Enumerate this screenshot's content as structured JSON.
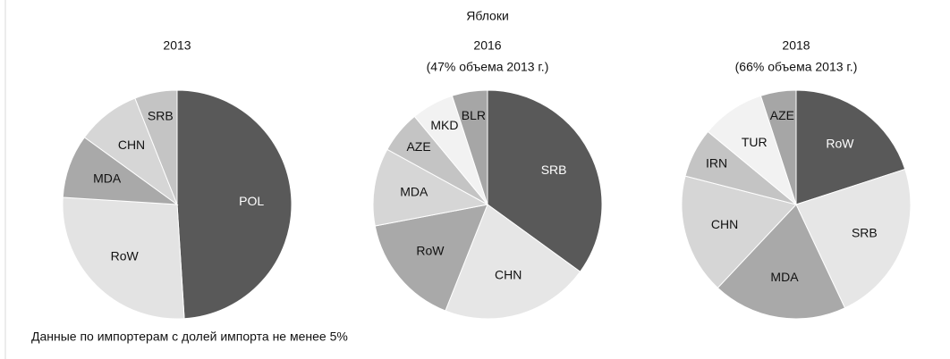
{
  "title": "Яблоки",
  "note": "Данные по импортерам с долей импорта не менее 5%",
  "chart_data": [
    {
      "type": "pie",
      "title": "2013",
      "categories": [
        "POL",
        "RoW",
        "MDA",
        "CHN",
        "SRB"
      ],
      "values": [
        49,
        27,
        9,
        9,
        6
      ],
      "colors": [
        "#595959",
        "#e3e3e3",
        "#a9a9a9",
        "#d6d6d6",
        "#c4c4c4"
      ],
      "label_colors": [
        "#ffffff",
        "#111111",
        "#111111",
        "#111111",
        "#111111"
      ]
    },
    {
      "type": "pie",
      "title": "2016",
      "subtitle": "(47% объема 2013 г.)",
      "categories": [
        "SRB",
        "CHN",
        "RoW",
        "MDA",
        "AZE",
        "MKD",
        "BLR"
      ],
      "values": [
        35,
        21,
        16,
        11,
        6,
        6,
        5
      ],
      "colors": [
        "#595959",
        "#e6e6e6",
        "#a9a9a9",
        "#d6d6d6",
        "#c4c4c4",
        "#f2f2f2",
        "#a6a6a6"
      ],
      "label_colors": [
        "#ffffff",
        "#111111",
        "#111111",
        "#111111",
        "#111111",
        "#111111",
        "#111111"
      ]
    },
    {
      "type": "pie",
      "title": "2018",
      "subtitle": "(66% объема 2013 г.)",
      "categories": [
        "RoW",
        "SRB",
        "MDA",
        "CHN",
        "IRN",
        "TUR",
        "AZE"
      ],
      "values": [
        20,
        23,
        19,
        17,
        7,
        9,
        5
      ],
      "colors": [
        "#595959",
        "#e6e6e6",
        "#a9a9a9",
        "#d6d6d6",
        "#c4c4c4",
        "#f2f2f2",
        "#a6a6a6"
      ],
      "label_colors": [
        "#ffffff",
        "#111111",
        "#111111",
        "#111111",
        "#111111",
        "#111111",
        "#111111"
      ]
    }
  ]
}
